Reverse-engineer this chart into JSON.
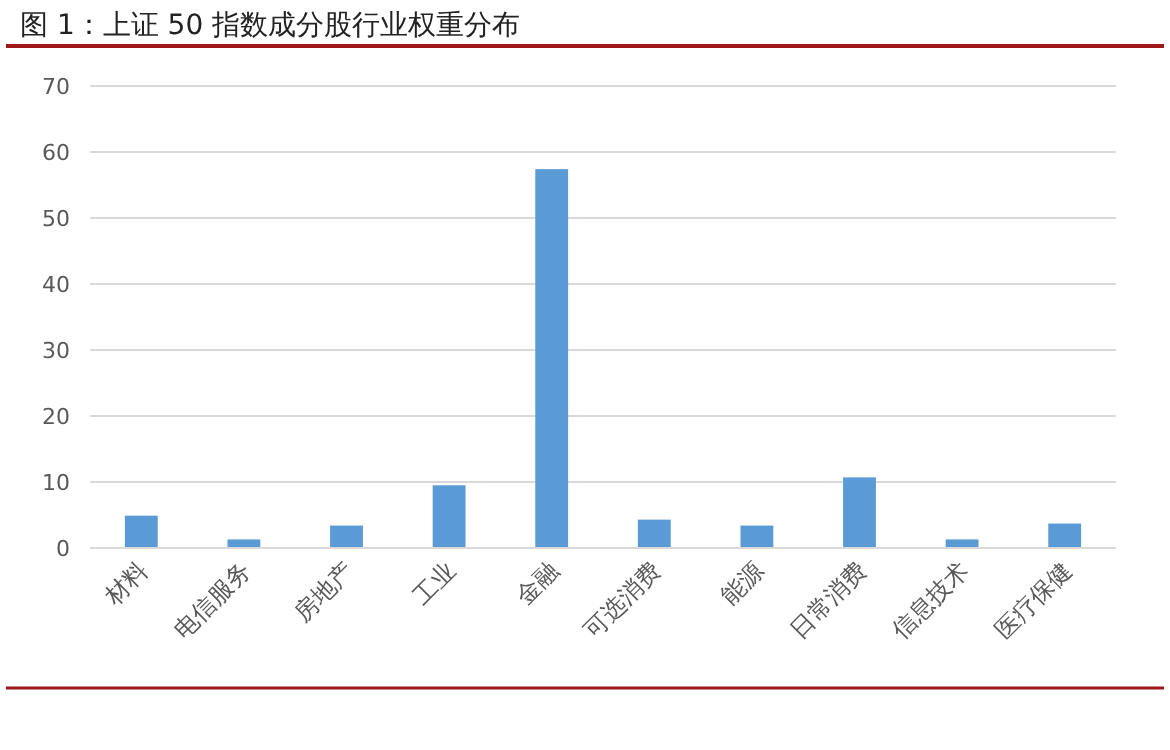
{
  "chart_data": {
    "type": "bar",
    "title": "图 1：上证 50 指数成分股行业权重分布",
    "categories": [
      "材料",
      "电信服务",
      "房地产",
      "工业",
      "金融",
      "可选消费",
      "能源",
      "日常消费",
      "信息技术",
      "医疗保健"
    ],
    "values": [
      4.9,
      1.3,
      3.4,
      9.5,
      57.4,
      4.3,
      3.4,
      10.7,
      1.3,
      3.7
    ],
    "color": "#5b9bd5",
    "ylim": [
      0,
      70
    ],
    "yticks": [
      0,
      10,
      20,
      30,
      40,
      50,
      60,
      70
    ],
    "grid": "y"
  }
}
